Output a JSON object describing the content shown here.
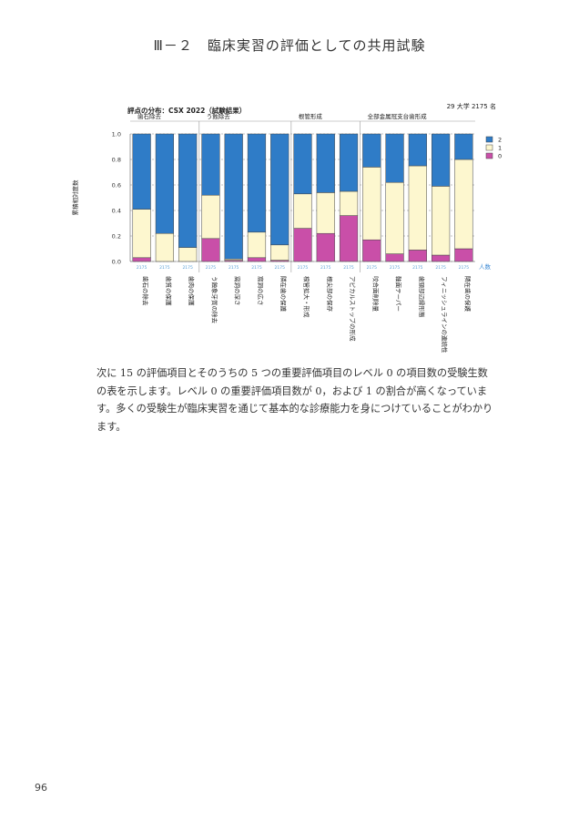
{
  "page": {
    "heading": "Ⅲ－２　臨床実習の評価としての共用試験",
    "paragraph": "次に 15 の評価項目とそのうちの 5 つの重要評価項目のレベル 0 の項目数の受験生数の表を示します。レベル 0 の重要評価項目数が 0，および 1 の割合が高くなっています。多くの受験生が臨床実習を通じて基本的な診療能力を身につけていることがわかります。",
    "page_number": "96"
  },
  "chart_data": {
    "type": "bar",
    "stacked": true,
    "title": "評点の分布：CSX 2022（試験結果）",
    "subtitle": "29 大学  2175 名",
    "ylabel": "累積相対度数",
    "ylim": [
      0,
      1.0
    ],
    "yticks": [
      "0.0",
      "0.2",
      "0.4",
      "0.6",
      "0.8",
      "1.0"
    ],
    "grid": true,
    "legend": {
      "position": "top-right",
      "entries": [
        "2",
        "1",
        "0"
      ]
    },
    "colors": {
      "0": "#c94fa8",
      "1": "#fdf7cf",
      "2": "#2f7cc7"
    },
    "count_label": "人数",
    "groups": [
      {
        "label": "歯石除去",
        "start": 0,
        "end": 2
      },
      {
        "label": "う蝕除去",
        "start": 3,
        "end": 6
      },
      {
        "label": "根管形成",
        "start": 7,
        "end": 9
      },
      {
        "label": "全部金属冠支台歯形成",
        "start": 10,
        "end": 14
      }
    ],
    "categories": [
      "歯石の除去",
      "歯質の保護",
      "歯肉の保護",
      "う蝕象牙質の除去",
      "窩洞の深さ",
      "窩洞の広さ",
      "隣在歯の保護",
      "根管拡大・形成",
      "根尖部の保存",
      "アピカルストップの形成",
      "咬合面削除量",
      "軸面テーパー",
      "歯頸部辺縁形態",
      "フィニッシュラインの連続性",
      "隣在歯の保護"
    ],
    "counts": [
      "2175",
      "2175",
      "2175",
      "2175",
      "2175",
      "2175",
      "2175",
      "2175",
      "2175",
      "2175",
      "2175",
      "2175",
      "2175",
      "2175",
      "2175"
    ],
    "series": [
      {
        "name": "0",
        "values": [
          0.03,
          0.0,
          0.0,
          0.18,
          0.01,
          0.03,
          0.01,
          0.26,
          0.22,
          0.36,
          0.17,
          0.06,
          0.09,
          0.05,
          0.1
        ]
      },
      {
        "name": "1",
        "values": [
          0.38,
          0.22,
          0.11,
          0.34,
          0.01,
          0.2,
          0.12,
          0.27,
          0.32,
          0.19,
          0.57,
          0.56,
          0.66,
          0.54,
          0.7
        ]
      },
      {
        "name": "2",
        "values": [
          0.59,
          0.78,
          0.89,
          0.48,
          0.98,
          0.77,
          0.87,
          0.47,
          0.46,
          0.45,
          0.26,
          0.38,
          0.25,
          0.41,
          0.2
        ]
      }
    ]
  }
}
